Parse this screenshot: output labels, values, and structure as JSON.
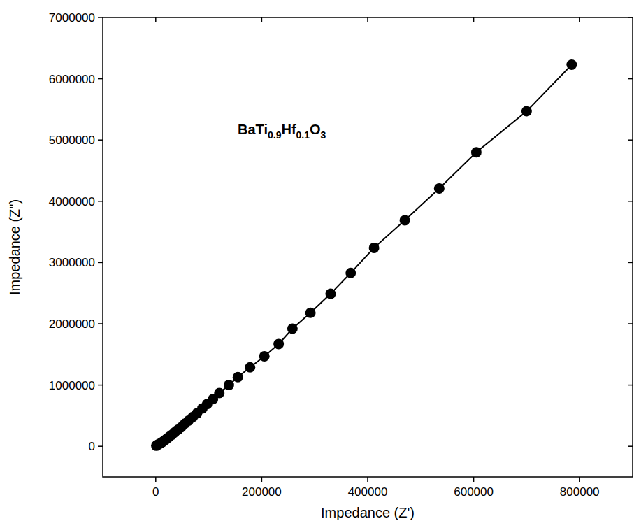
{
  "chart_data": {
    "type": "scatter",
    "marker": "circle",
    "line_style": "solid",
    "color": "#000000",
    "annotation": "BaTi0.9Hf0.1O3",
    "x_label": "Impedance (Z')",
    "y_label": "Impedance (Z\")",
    "x": [
      1000,
      3000,
      5000,
      8000,
      11000,
      14000,
      18000,
      22000,
      26000,
      31000,
      36000,
      42000,
      48000,
      55000,
      62000,
      70000,
      78000,
      88000,
      97000,
      108000,
      120000,
      138000,
      155000,
      178000,
      205000,
      232000,
      258000,
      292000,
      330000,
      368000,
      412000,
      470000,
      535000,
      605000,
      700000,
      785000
    ],
    "values": [
      10000,
      20000,
      32000,
      45000,
      60000,
      80000,
      105000,
      130000,
      160000,
      190000,
      230000,
      270000,
      310000,
      370000,
      420000,
      480000,
      540000,
      620000,
      690000,
      770000,
      870000,
      1000000,
      1130000,
      1290000,
      1470000,
      1670000,
      1920000,
      2180000,
      2490000,
      2830000,
      3240000,
      3690000,
      4210000,
      4800000,
      5470000,
      6230000
    ],
    "xlim": [
      -100000,
      900000
    ],
    "xticks": [
      0,
      200000,
      400000,
      600000,
      800000
    ],
    "ylim": [
      -500000,
      7000000
    ],
    "yticks": [
      0,
      1000000,
      2000000,
      3000000,
      4000000,
      5000000,
      6000000,
      7000000
    ],
    "grid": false
  }
}
